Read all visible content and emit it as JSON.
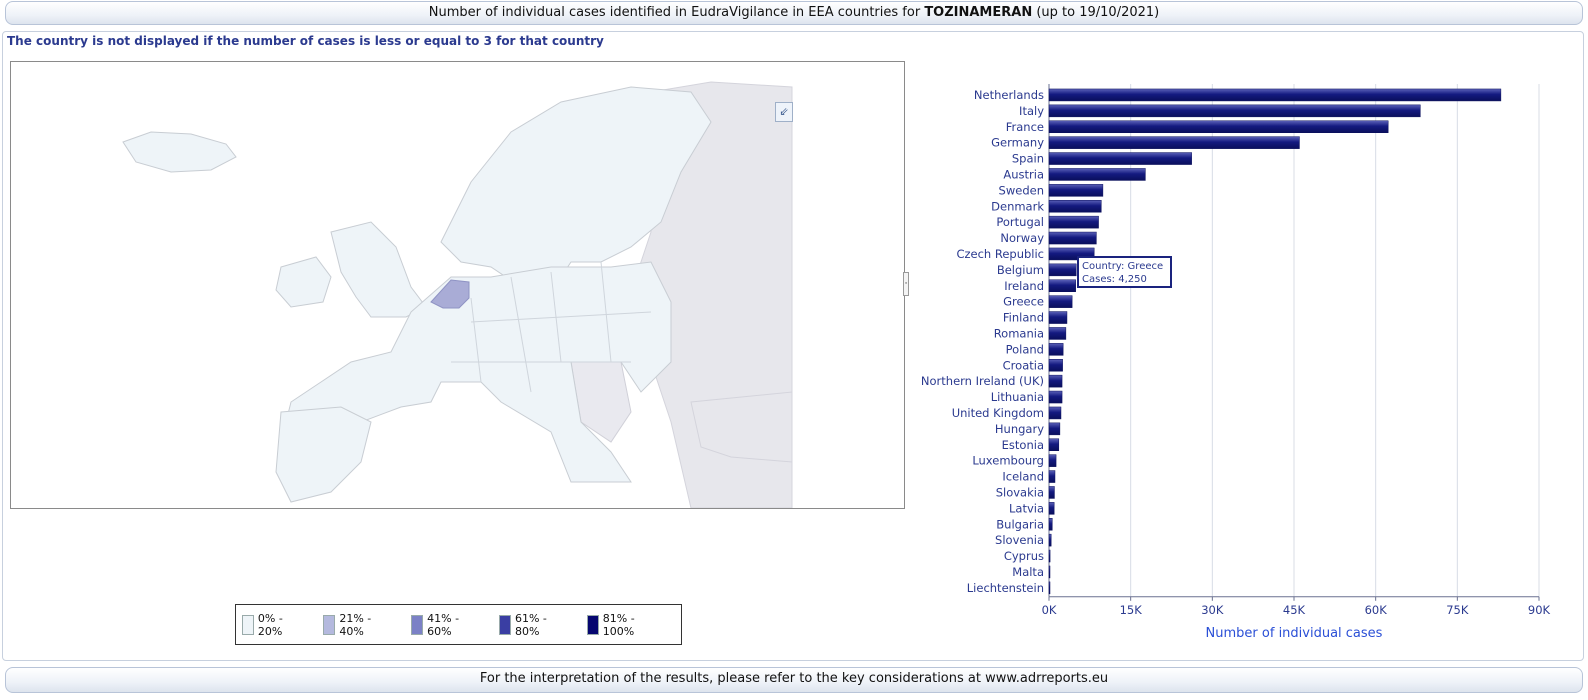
{
  "header": {
    "title_prefix": "Number of individual cases identified in EudraVigilance in EEA countries for",
    "product": "TOZINAMERAN",
    "title_suffix": "(up to 19/10/2021)"
  },
  "note": "The country is not displayed if the number of cases is less or equal to 3 for that country",
  "map": {
    "zoom_icon": "collapse-arrow-icon",
    "highlight_color": "#a9acd6",
    "base_color": "#eef4f8",
    "outside_color": "#e7e7ec"
  },
  "legend": {
    "items": [
      {
        "label": "0% - 20%",
        "color": "#eef4f8"
      },
      {
        "label": "21% - 40%",
        "color": "#b4b9de"
      },
      {
        "label": "41% - 60%",
        "color": "#7b81c6"
      },
      {
        "label": "61% - 80%",
        "color": "#3a3ea3"
      },
      {
        "label": "81% - 100%",
        "color": "#060670"
      }
    ]
  },
  "tooltip": {
    "line1": "Country: Greece",
    "line2": "Cases: 4,250"
  },
  "footer": "For the interpretation of the results, please refer to the key considerations at www.adrreports.eu",
  "chart_data": {
    "type": "bar",
    "orientation": "horizontal",
    "categories": [
      "Netherlands",
      "Italy",
      "France",
      "Germany",
      "Spain",
      "Austria",
      "Sweden",
      "Denmark",
      "Portugal",
      "Norway",
      "Czech Republic",
      "Belgium",
      "Ireland",
      "Greece",
      "Finland",
      "Romania",
      "Poland",
      "Croatia",
      "Northern Ireland (UK)",
      "Lithuania",
      "United Kingdom",
      "Hungary",
      "Estonia",
      "Luxembourg",
      "Iceland",
      "Slovakia",
      "Latvia",
      "Bulgaria",
      "Slovenia",
      "Cyprus",
      "Malta",
      "Liechtenstein"
    ],
    "values": [
      83000,
      68200,
      62300,
      46000,
      26200,
      17700,
      9900,
      9600,
      9100,
      8700,
      8300,
      5000,
      4900,
      4250,
      3300,
      3100,
      2600,
      2500,
      2400,
      2400,
      2200,
      2000,
      1800,
      1300,
      1100,
      1000,
      950,
      600,
      400,
      200,
      100,
      20
    ],
    "xlabel": "Number of individual cases",
    "xlim": [
      0,
      90000
    ],
    "xticks": [
      "0K",
      "15K",
      "30K",
      "45K",
      "60K",
      "75K",
      "90K"
    ],
    "bar_color": "#141a80",
    "grid": true
  }
}
